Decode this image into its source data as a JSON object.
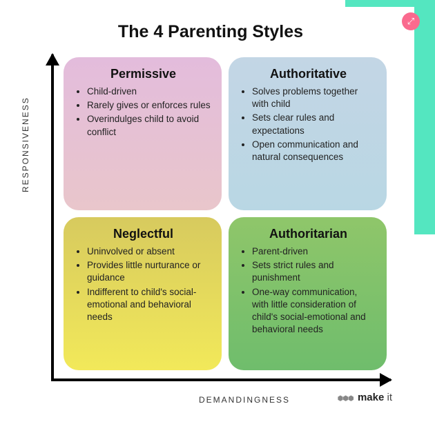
{
  "accent_color": "#54e6c0",
  "expand_button_color": "#fa6a8e",
  "title": "The 4 Parenting Styles",
  "axes": {
    "y_label": "RESPONSIVENESS",
    "x_label": "DEMANDINGNESS",
    "axis_color": "#000000"
  },
  "quadrants": [
    {
      "key": "permissive",
      "title": "Permissive",
      "bg_gradient_from": "#e3bcdc",
      "bg_gradient_to": "#e9c6cb",
      "bullets": [
        "Child-driven",
        "Rarely gives or enforces rules",
        "Overindulges child to avoid conflict"
      ]
    },
    {
      "key": "authoritative",
      "title": "Authoritative",
      "bg_gradient_from": "#c3d6e5",
      "bg_gradient_to": "#b9d7e4",
      "bullets": [
        "Solves problems together with child",
        "Sets clear rules and expectations",
        "Open communication and natural consequences"
      ]
    },
    {
      "key": "neglectful",
      "title": "Neglectful",
      "bg_gradient_from": "#d7ca5e",
      "bg_gradient_to": "#f2e95a",
      "bullets": [
        "Uninvolved or absent",
        "Provides little nurturance or guidance",
        "Indifferent to child's social-emotional and behavioral needs"
      ]
    },
    {
      "key": "authoritarian",
      "title": "Authoritarian",
      "bg_gradient_from": "#8fc66a",
      "bg_gradient_to": "#6fbd6c",
      "bullets": [
        "Parent-driven",
        "Sets strict rules and punishment",
        "One-way communication, with little consideration of child's social-emotional and behavioral needs"
      ]
    }
  ],
  "brand": {
    "prefix": "make",
    "suffix": "it"
  }
}
